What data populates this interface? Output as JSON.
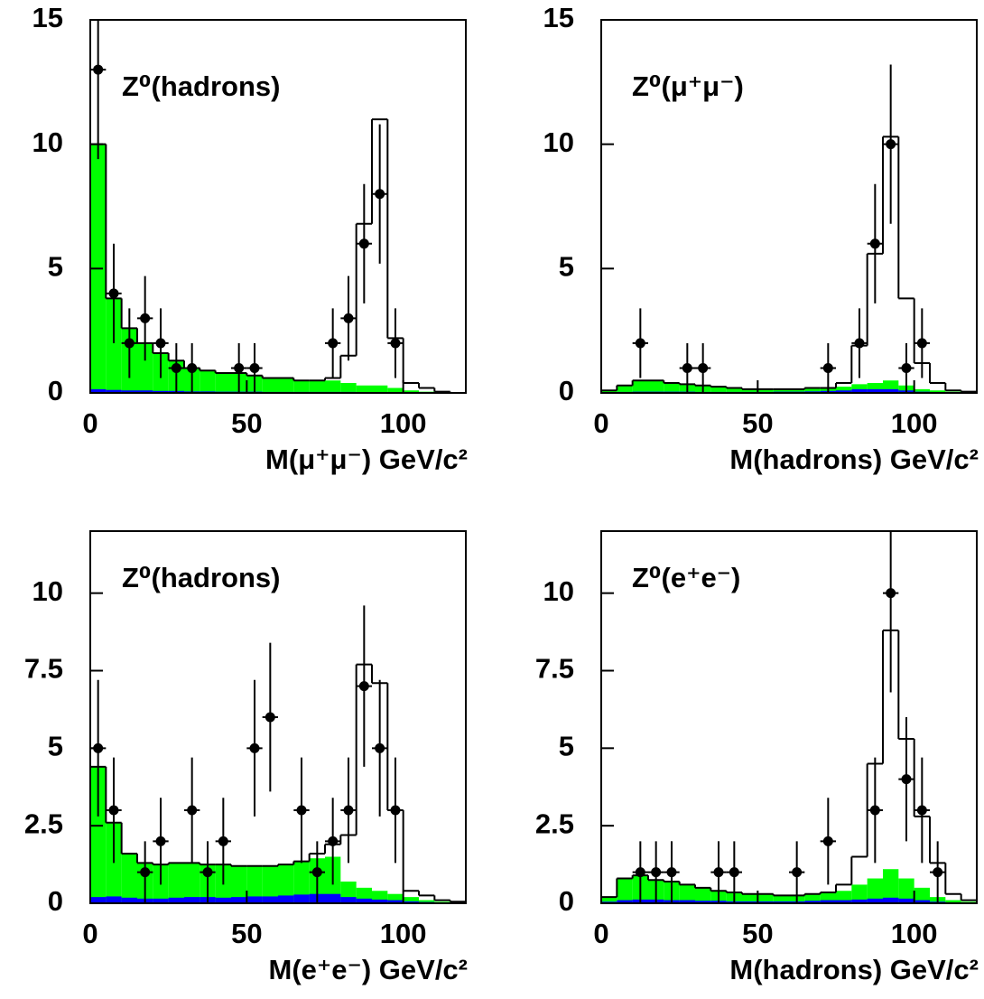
{
  "chart_data": [
    {
      "type": "histogram",
      "title": "Z⁰(hadrons)",
      "x_label": "M(μ⁺μ⁻) GeV/c²",
      "xlim": [
        0,
        120
      ],
      "xticks": [
        0,
        50,
        100
      ],
      "ylim": [
        0,
        15
      ],
      "yticks": [
        0,
        5,
        10,
        15
      ],
      "bins": [
        0,
        5,
        10,
        15,
        20,
        25,
        30,
        35,
        40,
        45,
        50,
        55,
        60,
        65,
        70,
        75,
        80,
        85,
        90,
        95,
        100,
        105,
        110,
        115,
        120
      ],
      "series": [
        {
          "color": "#00ff00",
          "filled": true,
          "values": [
            10,
            3.8,
            2.6,
            2.0,
            1.6,
            1.3,
            1.0,
            0.9,
            0.8,
            0.8,
            0.7,
            0.6,
            0.6,
            0.5,
            0.5,
            0.5,
            0.4,
            0.3,
            0.3,
            0.2,
            0.1,
            0.05,
            0.02,
            0
          ]
        },
        {
          "color": "#0000ff",
          "filled": true,
          "values": [
            0.15,
            0.12,
            0.1,
            0.1,
            0.08,
            0.08,
            0.06,
            0.06,
            0.05,
            0.05,
            0.05,
            0.04,
            0.04,
            0.04,
            0.04,
            0.04,
            0.04,
            0.03,
            0.03,
            0.02,
            0.02,
            0.01,
            0.01,
            0
          ]
        },
        {
          "color": "#000000",
          "filled": false,
          "values": [
            10,
            3.8,
            2.6,
            2.0,
            1.6,
            1.3,
            1.0,
            0.9,
            0.8,
            0.8,
            0.7,
            0.6,
            0.6,
            0.5,
            0.5,
            0.6,
            1.5,
            6.8,
            11,
            2.2,
            0.4,
            0.2,
            0.05,
            0
          ]
        }
      ],
      "points": {
        "color": "#000000",
        "x": [
          2.5,
          7.5,
          12.5,
          17.5,
          22.5,
          27.5,
          32.5,
          47.5,
          52.5,
          77.5,
          82.5,
          87.5,
          92.5,
          97.5
        ],
        "values": [
          13,
          4,
          2,
          3,
          2,
          1,
          1,
          1,
          1,
          2,
          3,
          6,
          8,
          2
        ],
        "errors": [
          3.6,
          2,
          1.4,
          1.7,
          1.4,
          1,
          1,
          1,
          1,
          1.4,
          1.7,
          2.4,
          2.8,
          1.4
        ]
      }
    },
    {
      "type": "histogram",
      "title": "Z⁰(μ⁺μ⁻)",
      "x_label": "M(hadrons) GeV/c²",
      "xlim": [
        0,
        120
      ],
      "xticks": [
        0,
        50,
        100
      ],
      "ylim": [
        0,
        15
      ],
      "yticks": [
        0,
        5,
        10,
        15
      ],
      "bins": [
        0,
        5,
        10,
        15,
        20,
        25,
        30,
        35,
        40,
        45,
        50,
        55,
        60,
        65,
        70,
        75,
        80,
        85,
        90,
        95,
        100,
        105,
        110,
        115,
        120
      ],
      "series": [
        {
          "color": "#00ff00",
          "filled": true,
          "values": [
            0.1,
            0.3,
            0.5,
            0.5,
            0.4,
            0.35,
            0.3,
            0.25,
            0.2,
            0.15,
            0.15,
            0.15,
            0.15,
            0.2,
            0.2,
            0.25,
            0.35,
            0.4,
            0.5,
            0.3,
            0.15,
            0.1,
            0.05,
            0.03
          ]
        },
        {
          "color": "#0000ff",
          "filled": true,
          "values": [
            0.02,
            0.04,
            0.05,
            0.05,
            0.05,
            0.05,
            0.04,
            0.04,
            0.04,
            0.04,
            0.04,
            0.05,
            0.05,
            0.06,
            0.08,
            0.1,
            0.15,
            0.15,
            0.15,
            0.1,
            0.05,
            0.03,
            0.02,
            0.01
          ]
        },
        {
          "color": "#000000",
          "filled": false,
          "values": [
            0.1,
            0.3,
            0.5,
            0.5,
            0.4,
            0.35,
            0.3,
            0.25,
            0.2,
            0.15,
            0.15,
            0.15,
            0.15,
            0.2,
            0.2,
            0.4,
            1.9,
            5.6,
            10.3,
            3.8,
            1.2,
            0.4,
            0.1,
            0.05
          ]
        }
      ],
      "points": {
        "color": "#000000",
        "x": [
          12.5,
          27.5,
          32.5,
          72.5,
          82.5,
          87.5,
          92.5,
          97.5,
          102.5
        ],
        "values": [
          2,
          1,
          1,
          1,
          2,
          6,
          10,
          1,
          2
        ],
        "errors": [
          1.4,
          1,
          1,
          1,
          1.4,
          2.4,
          3.2,
          1,
          1.4
        ]
      }
    },
    {
      "type": "histogram",
      "title": "Z⁰(hadrons)",
      "x_label": "M(e⁺e⁻) GeV/c²",
      "xlim": [
        0,
        120
      ],
      "xticks": [
        0,
        50,
        100
      ],
      "ylim": [
        0,
        12
      ],
      "yticks": [
        0,
        2.5,
        5,
        7.5,
        10
      ],
      "bins": [
        0,
        5,
        10,
        15,
        20,
        25,
        30,
        35,
        40,
        45,
        50,
        55,
        60,
        65,
        70,
        75,
        80,
        85,
        90,
        95,
        100,
        105,
        110,
        115,
        120
      ],
      "series": [
        {
          "color": "#00ff00",
          "filled": true,
          "values": [
            4.4,
            2.6,
            1.6,
            1.3,
            1.25,
            1.3,
            1.3,
            1.25,
            1.25,
            1.2,
            1.2,
            1.2,
            1.25,
            1.35,
            1.45,
            1.5,
            0.7,
            0.5,
            0.4,
            0.3,
            0.2,
            0.1,
            0.05,
            0.02
          ]
        },
        {
          "color": "#0000ff",
          "filled": true,
          "values": [
            0.2,
            0.22,
            0.18,
            0.15,
            0.15,
            0.18,
            0.2,
            0.2,
            0.18,
            0.2,
            0.22,
            0.22,
            0.25,
            0.28,
            0.3,
            0.3,
            0.2,
            0.15,
            0.12,
            0.1,
            0.06,
            0.04,
            0.02,
            0.01
          ]
        },
        {
          "color": "#000000",
          "filled": false,
          "values": [
            4.4,
            2.6,
            1.6,
            1.3,
            1.25,
            1.3,
            1.3,
            1.25,
            1.25,
            1.2,
            1.2,
            1.2,
            1.25,
            1.35,
            1.6,
            1.9,
            2.2,
            7.7,
            7.1,
            3.0,
            0.4,
            0.25,
            0.1,
            0.05
          ]
        }
      ],
      "points": {
        "color": "#000000",
        "x": [
          2.5,
          7.5,
          17.5,
          22.5,
          32.5,
          37.5,
          42.5,
          52.5,
          57.5,
          67.5,
          72.5,
          77.5,
          82.5,
          87.5,
          92.5,
          97.5
        ],
        "values": [
          5,
          3,
          1,
          2,
          3,
          1,
          2,
          5,
          6,
          3,
          1,
          2,
          3,
          7,
          5,
          3
        ],
        "errors": [
          2.2,
          1.7,
          1,
          1.4,
          1.7,
          1,
          1.4,
          2.2,
          2.4,
          1.7,
          1,
          1.4,
          1.7,
          2.6,
          2.2,
          1.7
        ]
      }
    },
    {
      "type": "histogram",
      "title": "Z⁰(e⁺e⁻)",
      "x_label": "M(hadrons) GeV/c²",
      "xlim": [
        0,
        120
      ],
      "xticks": [
        0,
        50,
        100
      ],
      "ylim": [
        0,
        12
      ],
      "yticks": [
        0,
        2.5,
        5,
        7.5,
        10
      ],
      "bins": [
        0,
        5,
        10,
        15,
        20,
        25,
        30,
        35,
        40,
        45,
        50,
        55,
        60,
        65,
        70,
        75,
        80,
        85,
        90,
        95,
        100,
        105,
        110,
        115,
        120
      ],
      "series": [
        {
          "color": "#00ff00",
          "filled": true,
          "values": [
            0.2,
            0.8,
            0.9,
            0.75,
            0.7,
            0.6,
            0.5,
            0.4,
            0.35,
            0.3,
            0.3,
            0.25,
            0.25,
            0.3,
            0.35,
            0.4,
            0.6,
            0.8,
            1.1,
            0.8,
            0.5,
            0.2,
            0.1,
            0.05
          ]
        },
        {
          "color": "#0000ff",
          "filled": true,
          "values": [
            0.05,
            0.1,
            0.12,
            0.12,
            0.1,
            0.1,
            0.08,
            0.08,
            0.06,
            0.06,
            0.06,
            0.06,
            0.06,
            0.08,
            0.1,
            0.1,
            0.12,
            0.15,
            0.18,
            0.15,
            0.1,
            0.05,
            0.03,
            0.01
          ]
        },
        {
          "color": "#000000",
          "filled": false,
          "values": [
            0.2,
            0.8,
            0.9,
            0.75,
            0.7,
            0.6,
            0.5,
            0.4,
            0.35,
            0.3,
            0.3,
            0.25,
            0.25,
            0.3,
            0.35,
            0.6,
            1.5,
            4.5,
            8.8,
            5.3,
            2.8,
            1.3,
            0.3,
            0.1
          ]
        }
      ],
      "points": {
        "color": "#000000",
        "x": [
          12.5,
          17.5,
          22.5,
          37.5,
          42.5,
          62.5,
          72.5,
          87.5,
          92.5,
          97.5,
          102.5,
          107.5
        ],
        "values": [
          1,
          1,
          1,
          1,
          1,
          1,
          2,
          3,
          10,
          4,
          3,
          1
        ],
        "errors": [
          1,
          1,
          1,
          1,
          1,
          1,
          1.4,
          1.7,
          3.2,
          2,
          1.7,
          1
        ]
      }
    }
  ]
}
